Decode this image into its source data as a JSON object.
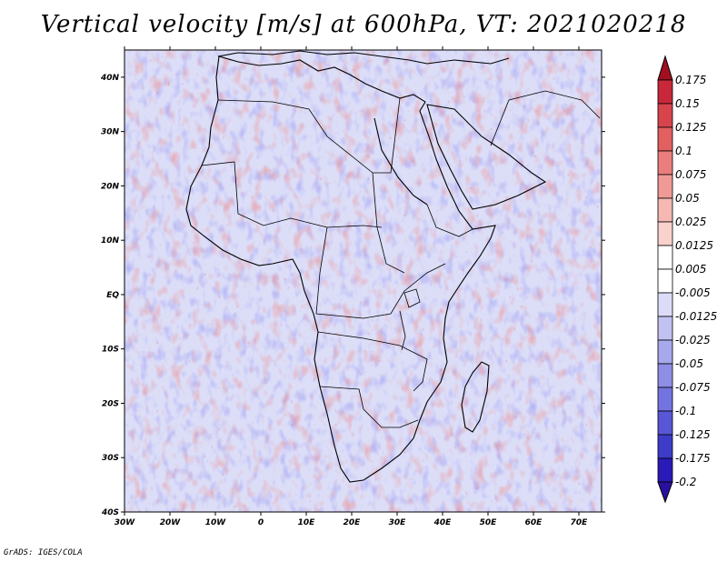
{
  "title": "Vertical velocity [m/s] at 600hPa, VT: 2021020218",
  "credit": "GrADS: IGES/COLA",
  "map": {
    "lon_labels": [
      "30W",
      "20W",
      "10W",
      "0",
      "10E",
      "20E",
      "30E",
      "40E",
      "50E",
      "60E",
      "70E"
    ],
    "lat_labels": [
      "40N",
      "30N",
      "20N",
      "10N",
      "EQ",
      "10S",
      "20S",
      "30S",
      "40S"
    ],
    "lon_range": [
      -30,
      75
    ],
    "lat_range": [
      -40,
      45
    ]
  },
  "colorbar": {
    "labels": [
      "0.175",
      "0.15",
      "0.125",
      "0.1",
      "0.075",
      "0.05",
      "0.025",
      "0.0125",
      "0.005",
      "-0.005",
      "-0.0125",
      "-0.025",
      "-0.05",
      "-0.075",
      "-0.1",
      "-0.125",
      "-0.175",
      "-0.2"
    ],
    "colors": [
      "#b01020",
      "#c8283a",
      "#d8444c",
      "#e26060",
      "#ea7e7c",
      "#f09a96",
      "#f5b8b3",
      "#fad2cd",
      "#ffffff",
      "#ffffff",
      "#dcdcf8",
      "#c2c2f2",
      "#a8a8ec",
      "#8e8ee6",
      "#7474e0",
      "#5858d6",
      "#3c3cc8",
      "#2a1ab8"
    ],
    "top_arrow_color": "#a01020",
    "bottom_arrow_color": "#2a10a0"
  }
}
